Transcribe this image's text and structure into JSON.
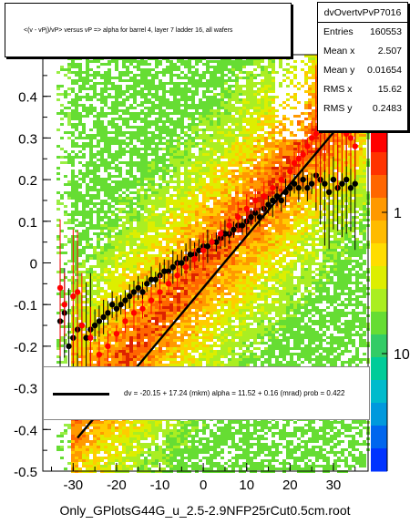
{
  "title": "<(v - vPj)/vP> versus   vP => alpha for barrel 4, layer 7 ladder 16, all wafers",
  "stats": {
    "name": "dvOvertvPvP7016",
    "entries_label": "Entries",
    "entries": "160553",
    "meanx_label": "Mean x",
    "meanx": "2.507",
    "meany_label": "Mean y",
    "meany": "0.01654",
    "rmsx_label": "RMS x",
    "rmsx": "15.62",
    "rmsy_label": "RMS y",
    "rmsy": "0.2483"
  },
  "fit_text": "dv =  -20.15 +  17.24 (mkm) alpha =    11.52 +  0.16 (mrad) prob = 0.422",
  "footer": "Only_GPlotsG44G_u_2.5-2.9NFP25rCut0.5cm.root",
  "colors": {
    "fit_line": "#000000",
    "profile_black": "#000000",
    "profile_red": "#ff0000"
  },
  "chart_data": {
    "type": "scatter",
    "title": "<(v - vPj)/vP> versus   vP => alpha for barrel 4, layer 7 ladder 16, all wafers",
    "xlim": [
      -37,
      38
    ],
    "ylim": [
      -0.5,
      0.5
    ],
    "x_ticks": [
      -30,
      -20,
      -10,
      0,
      10,
      20,
      30
    ],
    "y_ticks": [
      -0.5,
      -0.4,
      -0.3,
      -0.2,
      -0.1,
      0,
      0.1,
      0.2,
      0.3,
      0.4
    ],
    "z_ticks": [
      "1",
      "10"
    ],
    "fit_line": {
      "x": [
        -29,
        37
      ],
      "y": [
        -0.42,
        0.4
      ]
    },
    "series": [
      {
        "color": "black",
        "x": [
          -33,
          -32,
          -31,
          -30,
          -29,
          -28,
          -27,
          -26,
          -25,
          -24,
          -23,
          -22,
          -21,
          -20,
          -19,
          -18,
          -17,
          -16,
          -15,
          -14,
          -13,
          -12,
          -11,
          -10,
          -9,
          -8,
          -7,
          -6,
          -5,
          -4,
          -3,
          -2,
          -1,
          0,
          1,
          2,
          3,
          4,
          5,
          6,
          7,
          8,
          9,
          10,
          11,
          12,
          13,
          14,
          15,
          16,
          17,
          18,
          19,
          20,
          21,
          22,
          23,
          24,
          25,
          26,
          27,
          28,
          29,
          30,
          31,
          32,
          33,
          34,
          35
        ],
        "y": [
          -0.14,
          -0.12,
          -0.2,
          -0.18,
          -0.16,
          -0.15,
          -0.18,
          -0.16,
          -0.15,
          -0.14,
          -0.13,
          -0.12,
          -0.1,
          -0.11,
          -0.1,
          -0.09,
          -0.08,
          -0.07,
          -0.06,
          -0.07,
          -0.05,
          -0.04,
          -0.04,
          -0.03,
          -0.02,
          -0.02,
          -0.01,
          0.0,
          0.0,
          0.01,
          0.02,
          0.02,
          0.03,
          0.04,
          0.04,
          0.05,
          0.05,
          0.06,
          0.07,
          0.07,
          0.08,
          0.09,
          0.09,
          0.1,
          0.11,
          0.12,
          0.11,
          0.13,
          0.14,
          0.15,
          0.16,
          0.15,
          0.17,
          0.18,
          0.19,
          0.18,
          0.2,
          0.18,
          0.19,
          0.21,
          0.2,
          0.19,
          0.17,
          0.2,
          0.18,
          0.19,
          0.2,
          0.18,
          0.19
        ]
      },
      {
        "color": "red",
        "x": [
          -33,
          -32,
          -30,
          -29,
          -28,
          -26,
          -24,
          -22,
          -20,
          -18,
          -16,
          -14,
          -12,
          -10,
          -8,
          -6,
          -4,
          -2,
          0,
          2,
          4,
          6,
          8,
          10,
          12,
          14,
          16,
          18,
          20,
          21,
          22,
          23,
          24,
          25,
          26,
          27,
          28,
          29,
          30,
          31,
          32,
          33,
          34,
          35
        ],
        "y": [
          -0.06,
          -0.1,
          -0.08,
          -0.07,
          -0.15,
          -0.18,
          -0.22,
          -0.2,
          -0.17,
          -0.14,
          -0.12,
          -0.11,
          -0.09,
          -0.07,
          -0.05,
          -0.03,
          -0.01,
          0.01,
          0.03,
          0.05,
          0.07,
          0.09,
          0.11,
          0.13,
          0.15,
          0.16,
          0.18,
          0.2,
          0.22,
          0.24,
          0.25,
          0.26,
          0.28,
          0.3,
          0.31,
          0.33,
          0.34,
          0.37,
          0.35,
          0.32,
          0.33,
          0.31,
          0.3,
          0.28
        ]
      }
    ]
  }
}
